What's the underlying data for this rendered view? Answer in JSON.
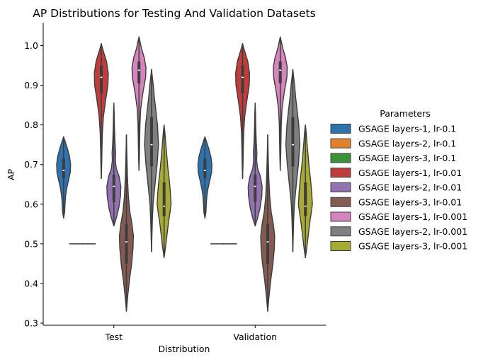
{
  "chart_data": {
    "type": "violin",
    "title": "AP Distributions for Testing And Validation Datasets",
    "xlabel": "Distribution",
    "ylabel": "AP",
    "ylim": [
      0.29,
      1.06
    ],
    "yticks": [
      0.3,
      0.4,
      0.5,
      0.6,
      0.7,
      0.8,
      0.9,
      1.0
    ],
    "ytick_labels": [
      "0.3",
      "0.4",
      "0.5",
      "0.6",
      "0.7",
      "0.8",
      "0.9",
      "1.0"
    ],
    "categories": [
      "Test",
      "Validation"
    ],
    "legend": {
      "title": "Parameters",
      "position": "right"
    },
    "series": [
      {
        "name": "GSAGE layers-1, lr-0.1",
        "color": "#2f72ad",
        "min": 0.565,
        "max": 0.77,
        "q1": 0.665,
        "median": 0.685,
        "q3": 0.715,
        "profile": [
          [
            0.565,
            0.0
          ],
          [
            0.58,
            0.15
          ],
          [
            0.6,
            0.2
          ],
          [
            0.62,
            0.28
          ],
          [
            0.64,
            0.45
          ],
          [
            0.66,
            0.7
          ],
          [
            0.68,
            0.95
          ],
          [
            0.7,
            1.0
          ],
          [
            0.72,
            0.85
          ],
          [
            0.74,
            0.55
          ],
          [
            0.755,
            0.28
          ],
          [
            0.77,
            0.0
          ]
        ]
      },
      {
        "name": "GSAGE layers-2, lr-0.1",
        "color": "#e1812c",
        "min": 0.5,
        "max": 0.5,
        "q1": 0.5,
        "median": 0.5,
        "q3": 0.5,
        "flat": true
      },
      {
        "name": "GSAGE layers-3, lr-0.1",
        "color": "#3a923a",
        "min": 0.5,
        "max": 0.5,
        "q1": 0.5,
        "median": 0.5,
        "q3": 0.5,
        "flat": true
      },
      {
        "name": "GSAGE layers-1, lr-0.01",
        "color": "#c03d3e",
        "min": 0.665,
        "max": 1.005,
        "q1": 0.88,
        "median": 0.92,
        "q3": 0.95,
        "profile": [
          [
            0.665,
            0.0
          ],
          [
            0.7,
            0.06
          ],
          [
            0.74,
            0.1
          ],
          [
            0.78,
            0.16
          ],
          [
            0.82,
            0.3
          ],
          [
            0.86,
            0.6
          ],
          [
            0.9,
            0.95
          ],
          [
            0.93,
            1.0
          ],
          [
            0.96,
            0.75
          ],
          [
            0.98,
            0.4
          ],
          [
            0.995,
            0.15
          ],
          [
            1.005,
            0.0
          ]
        ]
      },
      {
        "name": "GSAGE layers-2, lr-0.01",
        "color": "#9372b2",
        "min": 0.545,
        "max": 0.855,
        "q1": 0.605,
        "median": 0.645,
        "q3": 0.675,
        "profile": [
          [
            0.545,
            0.0
          ],
          [
            0.565,
            0.35
          ],
          [
            0.59,
            0.7
          ],
          [
            0.62,
            0.95
          ],
          [
            0.645,
            1.0
          ],
          [
            0.67,
            0.75
          ],
          [
            0.69,
            0.35
          ],
          [
            0.71,
            0.22
          ],
          [
            0.73,
            0.25
          ],
          [
            0.76,
            0.15
          ],
          [
            0.8,
            0.08
          ],
          [
            0.83,
            0.05
          ],
          [
            0.855,
            0.0
          ]
        ]
      },
      {
        "name": "GSAGE layers-3, lr-0.01",
        "color": "#845b53",
        "min": 0.33,
        "max": 0.775,
        "q1": 0.45,
        "median": 0.505,
        "q3": 0.55,
        "profile": [
          [
            0.33,
            0.0
          ],
          [
            0.37,
            0.2
          ],
          [
            0.41,
            0.45
          ],
          [
            0.45,
            0.75
          ],
          [
            0.49,
            0.95
          ],
          [
            0.52,
            1.0
          ],
          [
            0.55,
            0.8
          ],
          [
            0.58,
            0.5
          ],
          [
            0.62,
            0.28
          ],
          [
            0.67,
            0.15
          ],
          [
            0.72,
            0.07
          ],
          [
            0.775,
            0.0
          ]
        ]
      },
      {
        "name": "GSAGE layers-1, lr-0.001",
        "color": "#d684bd",
        "min": 0.685,
        "max": 1.022,
        "q1": 0.905,
        "median": 0.938,
        "q3": 0.96,
        "profile": [
          [
            0.685,
            0.0
          ],
          [
            0.72,
            0.06
          ],
          [
            0.76,
            0.1
          ],
          [
            0.8,
            0.14
          ],
          [
            0.84,
            0.25
          ],
          [
            0.88,
            0.55
          ],
          [
            0.92,
            0.95
          ],
          [
            0.945,
            1.0
          ],
          [
            0.97,
            0.75
          ],
          [
            0.99,
            0.4
          ],
          [
            1.01,
            0.15
          ],
          [
            1.022,
            0.0
          ]
        ]
      },
      {
        "name": "GSAGE layers-2, lr-0.001",
        "color": "#7f7f7f",
        "min": 0.48,
        "max": 0.94,
        "q1": 0.695,
        "median": 0.75,
        "q3": 0.82,
        "profile": [
          [
            0.48,
            0.0
          ],
          [
            0.52,
            0.06
          ],
          [
            0.56,
            0.12
          ],
          [
            0.6,
            0.22
          ],
          [
            0.65,
            0.5
          ],
          [
            0.7,
            0.8
          ],
          [
            0.75,
            1.0
          ],
          [
            0.8,
            0.85
          ],
          [
            0.84,
            0.6
          ],
          [
            0.87,
            0.4
          ],
          [
            0.9,
            0.25
          ],
          [
            0.92,
            0.12
          ],
          [
            0.94,
            0.0
          ]
        ]
      },
      {
        "name": "GSAGE layers-3, lr-0.001",
        "color": "#a9aa35",
        "min": 0.465,
        "max": 0.8,
        "q1": 0.57,
        "median": 0.595,
        "q3": 0.655,
        "profile": [
          [
            0.465,
            0.0
          ],
          [
            0.49,
            0.2
          ],
          [
            0.52,
            0.4
          ],
          [
            0.55,
            0.6
          ],
          [
            0.58,
            0.85
          ],
          [
            0.6,
            1.0
          ],
          [
            0.63,
            0.9
          ],
          [
            0.66,
            0.75
          ],
          [
            0.69,
            0.55
          ],
          [
            0.72,
            0.4
          ],
          [
            0.75,
            0.25
          ],
          [
            0.78,
            0.12
          ],
          [
            0.8,
            0.0
          ]
        ]
      }
    ]
  }
}
